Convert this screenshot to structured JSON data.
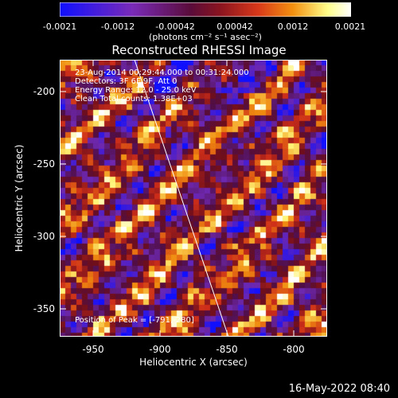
{
  "colorbar": {
    "ticks": [
      "-0.0021",
      "-0.0012",
      "-0.00042",
      "0.00042",
      "0.0012",
      "0.0021"
    ],
    "unit_label": "(photons cm⁻² s⁻¹ asec⁻²)",
    "colors": [
      "#1010ff",
      "#7a2bb8",
      "#5a0c3a",
      "#c0301e",
      "#f08010",
      "#ffff8a",
      "#ffffff"
    ]
  },
  "plot": {
    "title": "Reconstructed RHESSI Image",
    "annotations": [
      "23-Aug-2014 00:29:44.000 to 00:31:24.000",
      "Detectors: 3F 6F 9F, Att 0",
      "Energy Range: 12.0 - 25.0 keV",
      "Clean    Total counts: 1.38E+03"
    ],
    "peak_label": "Position of Peak = [-791,-280]",
    "x_axis": {
      "label": "Heliocentric X (arcsec)",
      "ticks": [
        "-950",
        "-900",
        "-850",
        "-800"
      ],
      "range": [
        -975,
        -775
      ]
    },
    "y_axis": {
      "label": "Heliocentric Y (arcsec)",
      "ticks": [
        "-200",
        "-250",
        "-300",
        "-350"
      ],
      "range": [
        -372,
        -180
      ]
    },
    "limb_line": "white"
  },
  "footer": {
    "date": "16-May-2022 08:40"
  }
}
